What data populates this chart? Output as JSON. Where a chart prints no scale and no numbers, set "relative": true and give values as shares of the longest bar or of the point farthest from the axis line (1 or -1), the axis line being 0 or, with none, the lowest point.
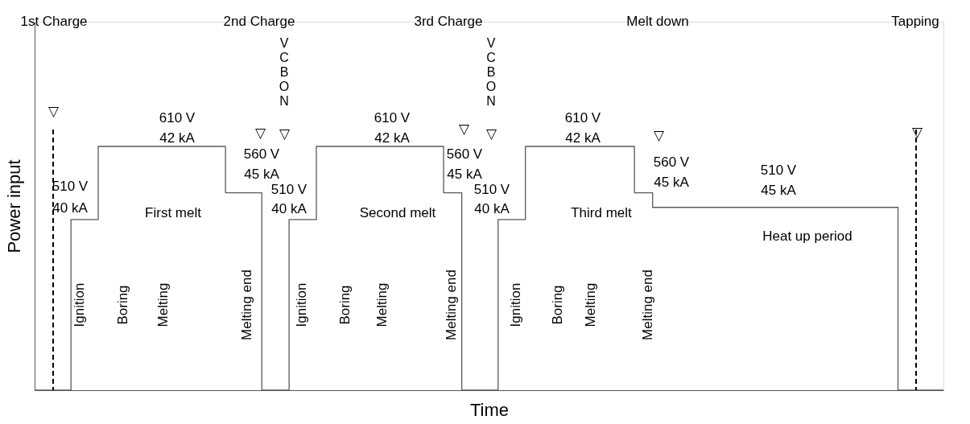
{
  "chart_data": {
    "type": "step",
    "relative": true,
    "xlabel": "Time",
    "ylabel": "Power input",
    "categories": [
      null,
      null,
      null,
      null,
      null,
      null,
      null,
      null,
      null,
      null,
      null,
      null,
      null,
      null,
      null,
      null,
      null,
      null,
      null,
      null,
      null,
      null,
      null,
      null,
      null,
      null,
      null,
      null,
      null,
      null,
      null,
      null,
      null,
      null,
      null,
      null,
      null,
      null,
      null,
      null,
      null,
      null,
      null,
      null,
      null,
      null,
      null,
      null,
      null,
      null,
      null,
      null,
      null,
      null,
      null,
      null,
      null,
      null,
      null,
      null,
      null,
      null,
      null,
      null,
      null,
      null,
      null,
      null,
      null,
      null,
      null,
      null,
      null,
      null,
      null,
      null,
      null,
      null,
      null,
      null,
      null,
      null,
      null,
      null,
      null,
      null,
      null,
      null,
      null,
      null,
      null,
      null,
      null,
      null,
      null,
      null,
      null,
      null,
      null,
      null,
      null
    ],
    "series": [
      {
        "color": "#595959",
        "values": [
          0,
          0,
          0,
          0,
          0.7,
          0.7,
          0.7,
          1,
          1,
          1,
          1,
          1,
          1,
          1,
          1,
          1,
          1,
          1,
          1,
          1,
          1,
          0.81,
          0.81,
          0.81,
          0.81,
          0,
          0,
          0,
          0.7,
          0.7,
          0.7,
          1,
          1,
          1,
          1,
          1,
          1,
          1,
          1,
          1,
          1,
          1,
          1,
          1,
          1,
          0.81,
          0.81,
          0,
          0,
          0,
          0,
          0.7,
          0.7,
          0.7,
          1,
          1,
          1,
          1,
          1,
          1,
          1,
          1,
          1,
          1,
          1,
          1,
          0.81,
          0.81,
          0.75,
          0.75,
          0.75,
          0.75,
          0.75,
          0.75,
          0.75,
          0.75,
          0.75,
          0.75,
          0.75,
          0.75,
          0.75,
          0.75,
          0.75,
          0.75,
          0.75,
          0.75,
          0.75,
          0.75,
          0.75,
          0.75,
          0.75,
          0.75,
          0.75,
          0.75,
          0.75,
          0,
          0,
          0,
          0,
          0,
          0
        ]
      }
    ],
    "tick_labels": false,
    "grid": false,
    "marker": "none",
    "line_style": "solid",
    "ref_lines": [
      {
        "axis": "x",
        "color": "#000000",
        "line_style": "dashed"
      },
      {
        "axis": "x",
        "color": "#000000",
        "line_style": "dashed"
      }
    ],
    "annotations": [
      "1st Charge",
      "2nd Charge",
      "3rd Charge",
      "Melt down",
      "Tapping",
      "VCB ON",
      "VCB ON",
      "▽",
      "▽",
      "▽",
      "▽",
      "▽",
      "▽",
      "▽",
      "510 V",
      "40 kA",
      "610 V",
      "42 kA",
      "560 V",
      "45 kA",
      "510 V",
      "40 kA",
      "610 V",
      "42 kA",
      "560 V",
      "45 kA",
      "510 V",
      "40 kA",
      "610 V",
      "42 kA",
      "560 V",
      "45 kA",
      "510 V",
      "45 kA",
      "First melt",
      "Second melt",
      "Third melt",
      "Heat up period",
      "Ignition",
      "Boring",
      "Melting",
      "Melting end",
      "Ignition",
      "Boring",
      "Melting",
      "Melting end",
      "Ignition",
      "Boring",
      "Melting",
      "Melting end"
    ]
  }
}
